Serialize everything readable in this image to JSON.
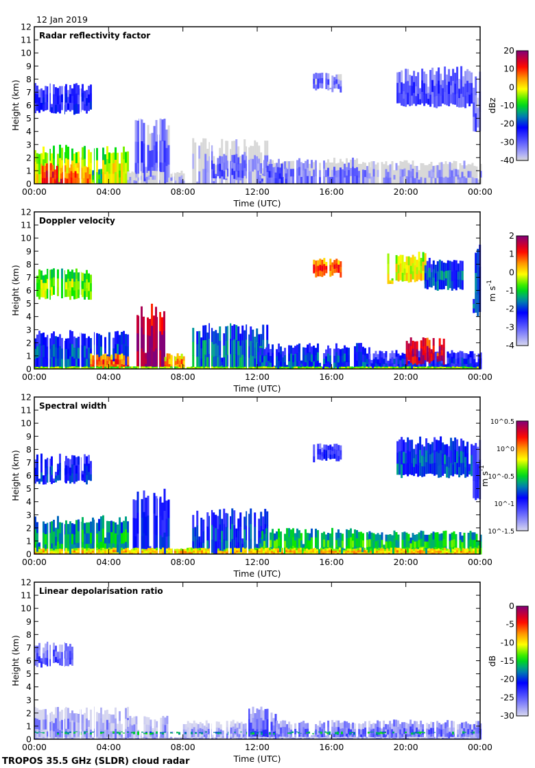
{
  "date_label": "12 Jan 2019",
  "footer": "TROPOS 35.5 GHz (SLDR) cloud radar",
  "colors": {
    "bg": "#ffffff",
    "axis": "#000000",
    "clear_echo": "#d8d8d8"
  },
  "chart_data": [
    {
      "type": "heatmap",
      "title": "Radar reflectivity factor",
      "xlabel": "Time (UTC)",
      "ylabel": "Height (km)",
      "xlim": [
        0,
        24
      ],
      "ylim": [
        0,
        12
      ],
      "xtick_labels": [
        "00:00",
        "04:00",
        "08:00",
        "12:00",
        "16:00",
        "20:00",
        "00:00"
      ],
      "ytick_labels": [
        "0",
        "1",
        "2",
        "3",
        "4",
        "5",
        "6",
        "7",
        "8",
        "9",
        "10",
        "11",
        "12"
      ],
      "colorbar": {
        "label": "dBz",
        "label_sup": "",
        "range": [
          -40,
          20
        ],
        "tick_labels": [
          "20",
          "10",
          "0",
          "-10",
          "-20",
          "-30",
          "-40"
        ],
        "log": false,
        "low_color": "#d8d8d8"
      },
      "layers": [
        [
          0,
          3,
          5.3,
          7.7,
          -25
        ],
        [
          3,
          5,
          0,
          1.2,
          -10
        ],
        [
          0,
          5,
          0,
          3,
          -2
        ],
        [
          0.4,
          1.5,
          0,
          1.6,
          12
        ],
        [
          1.5,
          3,
          0,
          1.5,
          6
        ],
        [
          5.3,
          7.2,
          0,
          5,
          -30
        ],
        [
          5,
          8,
          0,
          1,
          -38
        ],
        [
          8.5,
          12.5,
          0,
          3.5,
          -37
        ],
        [
          9.5,
          11.5,
          0.3,
          2.5,
          -30
        ],
        [
          12,
          18,
          0,
          2,
          -33
        ],
        [
          18,
          24,
          0,
          1.8,
          -36
        ],
        [
          15,
          16.5,
          7,
          8.5,
          -32
        ],
        [
          19.5,
          23.5,
          5.8,
          9,
          -28
        ],
        [
          23.6,
          24,
          4,
          9.5,
          -30
        ],
        [
          12.5,
          13.5,
          0,
          1.6,
          -28
        ]
      ]
    },
    {
      "type": "heatmap",
      "title": "Doppler velocity",
      "xlabel": "Time (UTC)",
      "ylabel": "Height (km)",
      "xlim": [
        0,
        24
      ],
      "ylim": [
        0,
        12
      ],
      "xtick_labels": [
        "00:00",
        "04:00",
        "08:00",
        "12:00",
        "16:00",
        "20:00",
        "00:00"
      ],
      "ytick_labels": [
        "0",
        "1",
        "2",
        "3",
        "4",
        "5",
        "6",
        "7",
        "8",
        "9",
        "10",
        "11",
        "12"
      ],
      "colorbar": {
        "label": "m s",
        "label_sup": "-1",
        "range": [
          -4,
          2
        ],
        "tick_labels": [
          "2",
          "1",
          "0",
          "-1",
          "-2",
          "-3",
          "-4"
        ],
        "log": false
      },
      "layers": [
        [
          0,
          3,
          5.3,
          7.7,
          -0.5
        ],
        [
          0,
          5,
          0,
          3,
          -2
        ],
        [
          3,
          5,
          0,
          1.2,
          0.8
        ],
        [
          5.5,
          7,
          0,
          5,
          1.9
        ],
        [
          7,
          8,
          0,
          1.2,
          0.5
        ],
        [
          8.5,
          12.5,
          0,
          3.5,
          -1.6
        ],
        [
          12,
          18,
          0,
          2,
          -2
        ],
        [
          18,
          24,
          0,
          1.5,
          -2.3
        ],
        [
          20,
          22,
          0.3,
          2.5,
          1.5
        ],
        [
          15,
          16.5,
          7,
          8.5,
          0.8
        ],
        [
          19,
          21,
          6.5,
          9,
          0
        ],
        [
          21,
          23,
          6,
          8.5,
          -1.8
        ],
        [
          23.6,
          24,
          4,
          9.5,
          -2
        ],
        [
          0,
          24,
          0,
          0.2,
          -0.3
        ]
      ]
    },
    {
      "type": "heatmap",
      "title": "Spectral width",
      "xlabel": "Time (UTC)",
      "ylabel": "Height (km)",
      "xlim": [
        0,
        24
      ],
      "ylim": [
        0,
        12
      ],
      "xtick_labels": [
        "00:00",
        "04:00",
        "08:00",
        "12:00",
        "16:00",
        "20:00",
        "00:00"
      ],
      "ytick_labels": [
        "0",
        "1",
        "2",
        "3",
        "4",
        "5",
        "6",
        "7",
        "8",
        "9",
        "10",
        "11",
        "12"
      ],
      "colorbar": {
        "label": "m s",
        "label_sup": "-1",
        "range": [
          -1.5,
          0.5
        ],
        "tick_labels": [
          "10^0.5",
          "10^0",
          "10^-0.5",
          "10^-1",
          "10^-1.5"
        ],
        "log": true
      },
      "layers": [
        [
          0,
          3,
          5.3,
          7.7,
          -0.9
        ],
        [
          0,
          5,
          0,
          3,
          -0.6
        ],
        [
          5.3,
          7.2,
          0,
          5,
          -0.9
        ],
        [
          8.5,
          12.5,
          0,
          3.5,
          -0.8
        ],
        [
          12,
          18,
          0,
          2,
          -0.5
        ],
        [
          18,
          24,
          0,
          1.8,
          -0.5
        ],
        [
          15,
          16.5,
          7,
          8.5,
          -1
        ],
        [
          19.5,
          23.5,
          5.8,
          9,
          -0.8
        ],
        [
          23.6,
          24,
          4,
          9.5,
          -1
        ],
        [
          0,
          24,
          0,
          0.5,
          -0.1
        ]
      ]
    },
    {
      "type": "heatmap",
      "title": "Linear depolarisation ratio",
      "xlabel": "Time (UTC)",
      "ylabel": "Height (km)",
      "xlim": [
        0,
        24
      ],
      "ylim": [
        0,
        12
      ],
      "xtick_labels": [
        "00:00",
        "04:00",
        "08:00",
        "12:00",
        "16:00",
        "20:00",
        "00:00"
      ],
      "ytick_labels": [
        "0",
        "1",
        "2",
        "3",
        "4",
        "5",
        "6",
        "7",
        "8",
        "9",
        "10",
        "11",
        "12"
      ],
      "colorbar": {
        "label": "dB",
        "label_sup": "",
        "range": [
          -30,
          0
        ],
        "tick_labels": [
          "0",
          "-5",
          "-10",
          "-15",
          "-20",
          "-25",
          "-30"
        ],
        "log": false
      },
      "layers": [
        [
          0,
          2,
          5.5,
          7.5,
          -25
        ],
        [
          0,
          5,
          0,
          2.5,
          -28
        ],
        [
          5,
          7.2,
          0,
          1.8,
          -28
        ],
        [
          8,
          12,
          0,
          1.5,
          -28
        ],
        [
          11.5,
          13,
          0,
          2.5,
          -25
        ],
        [
          13,
          24,
          0,
          1.5,
          -26
        ],
        [
          0,
          24,
          0.35,
          0.6,
          -16
        ],
        [
          0,
          24,
          0,
          0.2,
          -28
        ]
      ]
    }
  ]
}
